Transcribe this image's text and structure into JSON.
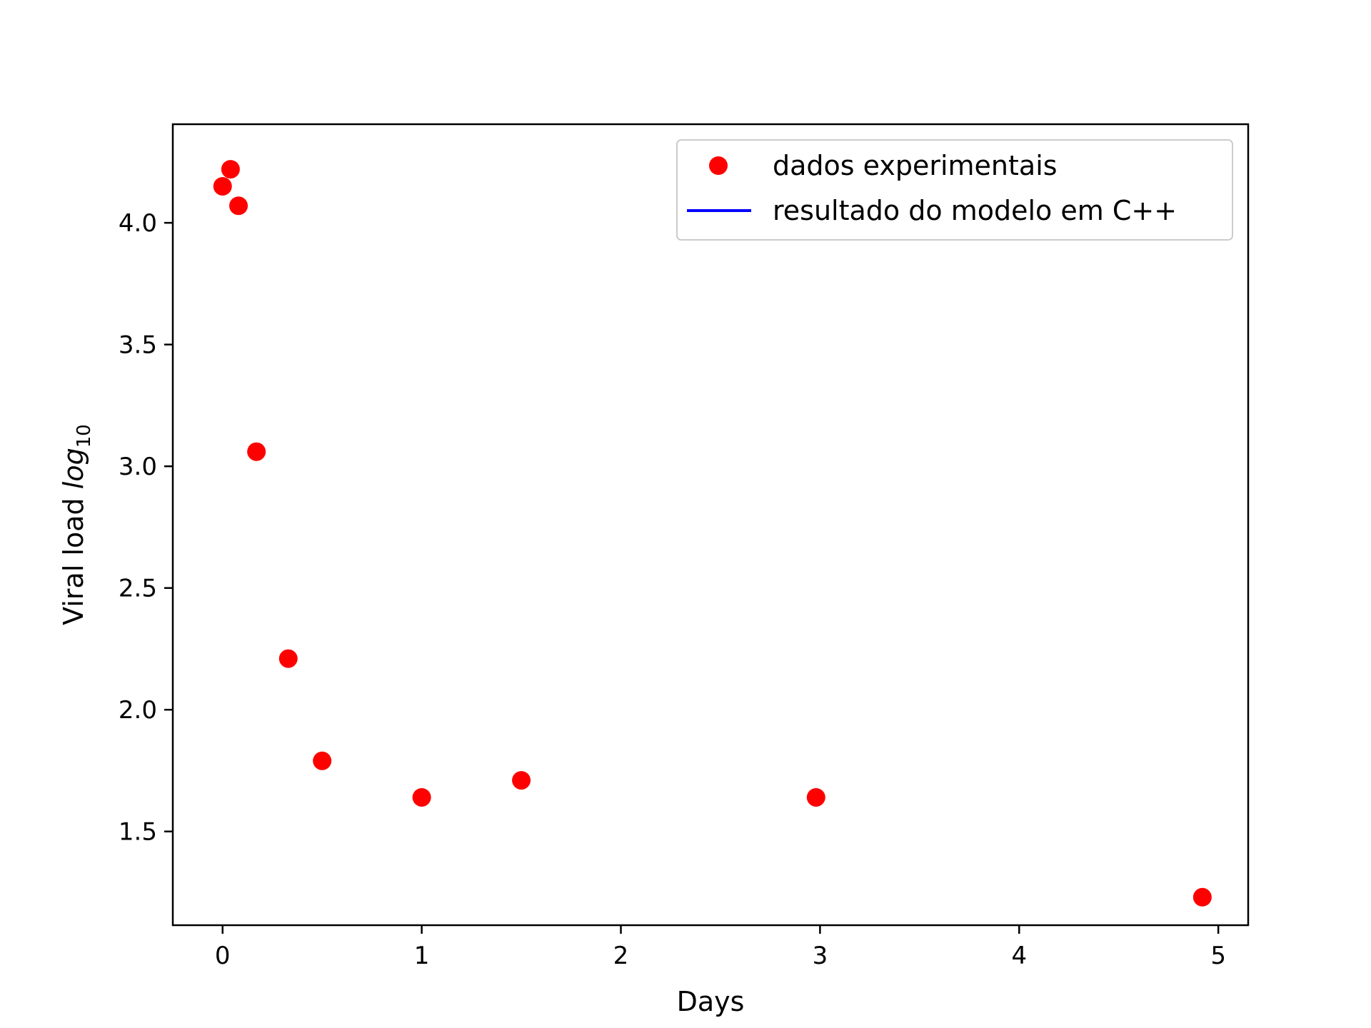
{
  "chart_data": {
    "type": "scatter",
    "xlabel": "Days",
    "ylabel_prefix": "Viral load ",
    "ylabel_math": "log",
    "ylabel_sub": "10",
    "xlim": [
      -0.25,
      5.15
    ],
    "ylim": [
      1.115,
      4.405
    ],
    "x_ticks": [
      0,
      1,
      2,
      3,
      4,
      5
    ],
    "y_ticks": [
      1.5,
      2.0,
      2.5,
      3.0,
      3.5,
      4.0
    ],
    "x_tick_labels": [
      "0",
      "1",
      "2",
      "3",
      "4",
      "5"
    ],
    "y_tick_labels": [
      "1.5",
      "2.0",
      "2.5",
      "3.0",
      "3.5",
      "4.0"
    ],
    "grid": false,
    "legend": {
      "placement": "upper right",
      "entries": [
        {
          "label": "dados experimentais",
          "marker": "circle",
          "color": "#ff0000"
        },
        {
          "label": "resultado do modelo em C++",
          "marker": "line",
          "color": "#0000ff"
        }
      ]
    },
    "series": [
      {
        "name": "dados experimentais",
        "color": "#ff0000",
        "points": [
          {
            "x": 0.0,
            "y": 4.15
          },
          {
            "x": 0.04,
            "y": 4.22
          },
          {
            "x": 0.08,
            "y": 4.07
          },
          {
            "x": 0.17,
            "y": 3.06
          },
          {
            "x": 0.33,
            "y": 2.21
          },
          {
            "x": 0.5,
            "y": 1.79
          },
          {
            "x": 1.0,
            "y": 1.64
          },
          {
            "x": 1.5,
            "y": 1.71
          },
          {
            "x": 2.98,
            "y": 1.64
          },
          {
            "x": 4.92,
            "y": 1.23
          }
        ]
      },
      {
        "name": "resultado do modelo em C++",
        "color": "#0000ff",
        "points": []
      }
    ]
  }
}
